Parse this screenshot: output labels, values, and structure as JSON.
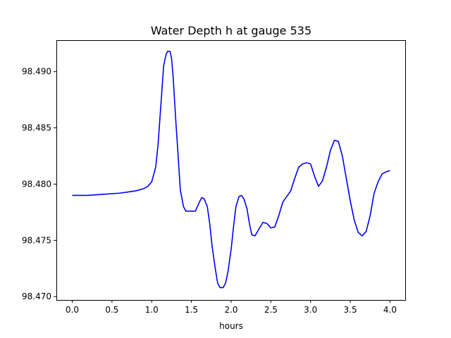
{
  "chart_data": {
    "type": "line",
    "title": "Water Depth h at gauge 535",
    "xlabel": "hours",
    "ylabel": "",
    "xlim": [
      -0.2,
      4.2
    ],
    "ylim": [
      98.4697,
      98.4928
    ],
    "xticks": [
      0.0,
      0.5,
      1.0,
      1.5,
      2.0,
      2.5,
      3.0,
      3.5,
      4.0
    ],
    "xtick_labels": [
      "0.0",
      "0.5",
      "1.0",
      "1.5",
      "2.0",
      "2.5",
      "3.0",
      "3.5",
      "4.0"
    ],
    "yticks": [
      98.47,
      98.475,
      98.48,
      98.485,
      98.49
    ],
    "ytick_labels": [
      "98.470",
      "98.475",
      "98.480",
      "98.485",
      "98.490"
    ],
    "grid": false,
    "series": [
      {
        "color": "#0000ff",
        "x": [
          0.0,
          0.2,
          0.4,
          0.6,
          0.7,
          0.8,
          0.9,
          0.95,
          1.0,
          1.05,
          1.08,
          1.1,
          1.13,
          1.15,
          1.18,
          1.2,
          1.23,
          1.25,
          1.27,
          1.3,
          1.33,
          1.36,
          1.4,
          1.43,
          1.46,
          1.5,
          1.55,
          1.6,
          1.63,
          1.66,
          1.7,
          1.73,
          1.76,
          1.8,
          1.83,
          1.86,
          1.9,
          1.93,
          1.96,
          2.0,
          2.03,
          2.06,
          2.1,
          2.13,
          2.16,
          2.2,
          2.23,
          2.26,
          2.3,
          2.35,
          2.4,
          2.45,
          2.5,
          2.55,
          2.6,
          2.65,
          2.7,
          2.75,
          2.8,
          2.85,
          2.9,
          2.95,
          3.0,
          3.05,
          3.1,
          3.15,
          3.2,
          3.25,
          3.3,
          3.35,
          3.4,
          3.45,
          3.5,
          3.55,
          3.6,
          3.65,
          3.7,
          3.75,
          3.8,
          3.85,
          3.9,
          3.95,
          4.0
        ],
        "y": [
          98.479,
          98.479,
          98.4791,
          98.4792,
          98.4793,
          98.4794,
          98.4796,
          98.4798,
          98.4802,
          98.4815,
          98.4835,
          98.4855,
          98.4885,
          98.4905,
          98.4915,
          98.4918,
          98.4918,
          98.4912,
          98.4895,
          98.486,
          98.4828,
          98.4795,
          98.478,
          98.4776,
          98.4776,
          98.4776,
          98.4776,
          98.4784,
          98.4788,
          98.4787,
          98.478,
          98.4765,
          98.4745,
          98.4725,
          98.4712,
          98.4708,
          98.4708,
          98.4712,
          98.4722,
          98.4742,
          98.4762,
          98.478,
          98.4789,
          98.479,
          98.4787,
          98.4778,
          98.4765,
          98.4755,
          98.4754,
          98.476,
          98.4766,
          98.4765,
          98.4761,
          98.4762,
          98.4772,
          98.4784,
          98.4789,
          98.4794,
          98.4805,
          98.4815,
          98.4818,
          98.4819,
          98.4818,
          98.4807,
          98.4798,
          98.4803,
          98.4815,
          98.483,
          98.4839,
          98.4838,
          98.4825,
          98.4805,
          98.4785,
          98.4768,
          98.4757,
          98.4754,
          98.4758,
          98.4772,
          98.4792,
          98.4802,
          98.4809,
          98.4811,
          98.4812
        ]
      }
    ]
  }
}
